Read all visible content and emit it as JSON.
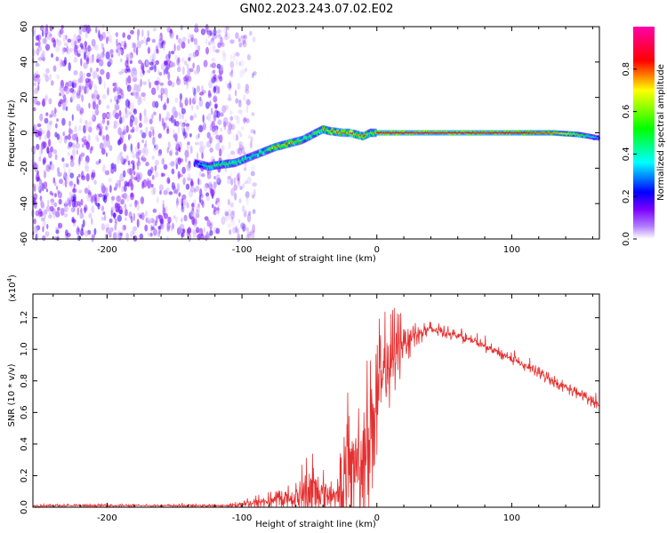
{
  "title": "GN02.2023.243.07.02.E02",
  "chart_data": [
    {
      "type": "heatmap",
      "xlabel": "Height of straight line (km)",
      "ylabel": "Frequency (Hz)",
      "xlim": [
        -255,
        165
      ],
      "ylim": [
        -60,
        60
      ],
      "xticks": [
        -200,
        -100,
        0,
        100
      ],
      "yticks": [
        -60,
        -40,
        -20,
        0,
        20,
        40,
        60
      ],
      "colorbar": {
        "label": "Normalized spectral amplitude",
        "range": [
          0.0,
          1.0
        ],
        "ticks": [
          0.0,
          0.2,
          0.4,
          0.6,
          0.8
        ],
        "colors": [
          "#ffffff",
          "#7a00ff",
          "#0000ff",
          "#00ffff",
          "#00ff00",
          "#ffff00",
          "#ff0000",
          "#ff00aa"
        ]
      },
      "noise_region_x": [
        -255,
        -115
      ],
      "ridge": {
        "x": [
          -135,
          -125,
          -115,
          -105,
          -95,
          -85,
          -75,
          -65,
          -55,
          -45,
          -40,
          -35,
          -25,
          -20,
          -15,
          -10,
          -5,
          0,
          20,
          60,
          100,
          130,
          150,
          165
        ],
        "y": [
          -17,
          -19,
          -18,
          -17,
          -14,
          -11,
          -8,
          -6,
          -4,
          0,
          2,
          1,
          0,
          0,
          -1,
          -2,
          0,
          0,
          0,
          0,
          0,
          0,
          -1,
          -3
        ],
        "amplitude": [
          0.25,
          0.5,
          0.5,
          0.5,
          0.45,
          0.5,
          0.7,
          0.75,
          0.55,
          0.6,
          0.65,
          0.75,
          0.8,
          0.85,
          0.7,
          0.8,
          0.5,
          0.9,
          0.9,
          0.9,
          0.88,
          0.8,
          0.6,
          0.3
        ]
      },
      "grid": false
    },
    {
      "type": "line",
      "xlabel": "Height of straight line (km)",
      "ylabel": "SNR (10 * v/v)",
      "yscale_label": "(x10",
      "yscale_exp": "4",
      "yscale_suffix": ")",
      "xlim": [
        -255,
        165
      ],
      "ylim": [
        0.0,
        1.35
      ],
      "xticks": [
        -200,
        -100,
        0,
        100
      ],
      "yticks": [
        0.0,
        0.2,
        0.4,
        0.6,
        0.8,
        1.0,
        1.2
      ],
      "color": "#e53030",
      "envelope": {
        "x": [
          -255,
          -110,
          -100,
          -80,
          -60,
          -50,
          -45,
          -40,
          -30,
          -25,
          -20,
          -10,
          -5,
          5,
          15,
          20,
          30,
          40,
          60,
          80,
          100,
          120,
          140,
          165
        ],
        "base": [
          0.01,
          0.01,
          0.02,
          0.04,
          0.06,
          0.09,
          0.1,
          0.09,
          0.07,
          0.1,
          0.25,
          0.35,
          0.55,
          0.8,
          1.02,
          1.06,
          1.1,
          1.13,
          1.09,
          1.02,
          0.94,
          0.85,
          0.76,
          0.65
        ],
        "spike": [
          0.01,
          0.01,
          0.04,
          0.06,
          0.12,
          0.35,
          0.3,
          0.18,
          0.1,
          0.4,
          0.45,
          0.5,
          0.55,
          0.45,
          0.3,
          0.2,
          0.08,
          0.05,
          0.04,
          0.04,
          0.04,
          0.04,
          0.04,
          0.04
        ]
      },
      "grid": false
    }
  ]
}
